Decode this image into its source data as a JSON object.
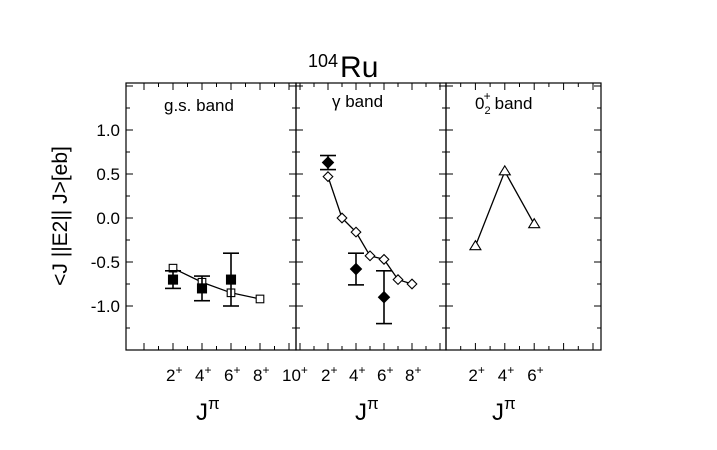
{
  "figure": {
    "nucleus_mass": "104",
    "nucleus_symbol": "Ru",
    "ylabel": "<J ||E2|| J>[eb]",
    "x_axis_letter": "J",
    "x_axis_superscript": "π"
  },
  "chart_data": [
    {
      "type": "scatter",
      "panel_label": "g.s. band",
      "xlabel": "Jπ",
      "ylabel": "<J ||E2|| J>[eb]",
      "ylim": [
        -1.5,
        1.5
      ],
      "yticks": [
        1.0,
        0.5,
        0.0,
        -0.5,
        -1.0
      ],
      "ytick_labels": [
        "1.0",
        "0.5",
        "0.0",
        "-0.5",
        "-1.0"
      ],
      "x_categories": [
        1,
        2,
        3,
        4,
        5,
        6,
        7,
        8,
        9,
        10
      ],
      "x_tick_labels": [
        {
          "x": 2,
          "base": "2",
          "sup": "+"
        },
        {
          "x": 4,
          "base": "4",
          "sup": "+"
        },
        {
          "x": 6,
          "base": "6",
          "sup": "+"
        },
        {
          "x": 8,
          "base": "8",
          "sup": "+"
        },
        {
          "x": 10,
          "base": "10",
          "sup": "+"
        }
      ],
      "xlim": [
        0,
        11
      ],
      "series": [
        {
          "marker": "open-square",
          "connected": true,
          "points": [
            {
              "x": 2,
              "y": -0.57
            },
            {
              "x": 4,
              "y": -0.73
            },
            {
              "x": 6,
              "y": -0.85
            },
            {
              "x": 8,
              "y": -0.92
            }
          ]
        },
        {
          "marker": "filled-square",
          "connected": false,
          "points": [
            {
              "x": 2,
              "y": -0.7,
              "err": 0.1
            },
            {
              "x": 4,
              "y": -0.8,
              "err": 0.14
            },
            {
              "x": 6,
              "y": -0.7,
              "err": 0.3
            }
          ]
        }
      ]
    },
    {
      "type": "scatter",
      "panel_label": "γ band",
      "xlabel": "Jπ",
      "ylim": [
        -1.5,
        1.5
      ],
      "x_categories": [
        2,
        3,
        4,
        5,
        6,
        7,
        8
      ],
      "x_tick_labels": [
        {
          "x": 2,
          "base": "2",
          "sup": "+"
        },
        {
          "x": 4,
          "base": "4",
          "sup": "+"
        },
        {
          "x": 6,
          "base": "6",
          "sup": "+"
        },
        {
          "x": 8,
          "base": "8",
          "sup": "+"
        }
      ],
      "xlim": [
        0,
        10
      ],
      "series": [
        {
          "marker": "open-diamond",
          "connected": true,
          "points": [
            {
              "x": 2,
              "y": 0.47
            },
            {
              "x": 3,
              "y": 0.0
            },
            {
              "x": 4,
              "y": -0.16
            },
            {
              "x": 5,
              "y": -0.43
            },
            {
              "x": 6,
              "y": -0.47
            },
            {
              "x": 7,
              "y": -0.7
            },
            {
              "x": 8,
              "y": -0.75
            }
          ]
        },
        {
          "marker": "filled-diamond",
          "connected": false,
          "points": [
            {
              "x": 2,
              "y": 0.63,
              "err": 0.08
            },
            {
              "x": 4,
              "y": -0.58,
              "err": 0.18
            },
            {
              "x": 6,
              "y": -0.9,
              "err": 0.3
            }
          ]
        }
      ]
    },
    {
      "type": "line",
      "panel_label_base": "0",
      "panel_label_sub": "2",
      "panel_label_sup": "+",
      "panel_label_rest": "band",
      "xlabel": "Jπ",
      "ylim": [
        -1.5,
        1.5
      ],
      "x_categories": [
        2,
        4,
        6
      ],
      "x_tick_labels": [
        {
          "x": 2,
          "base": "2",
          "sup": "+"
        },
        {
          "x": 4,
          "base": "4",
          "sup": "+"
        },
        {
          "x": 6,
          "base": "6",
          "sup": "+"
        }
      ],
      "xlim": [
        0,
        10
      ],
      "series": [
        {
          "marker": "open-triangle",
          "connected": true,
          "points": [
            {
              "x": 2,
              "y": -0.32
            },
            {
              "x": 4,
              "y": 0.53
            },
            {
              "x": 6,
              "y": -0.07
            }
          ]
        }
      ]
    }
  ]
}
